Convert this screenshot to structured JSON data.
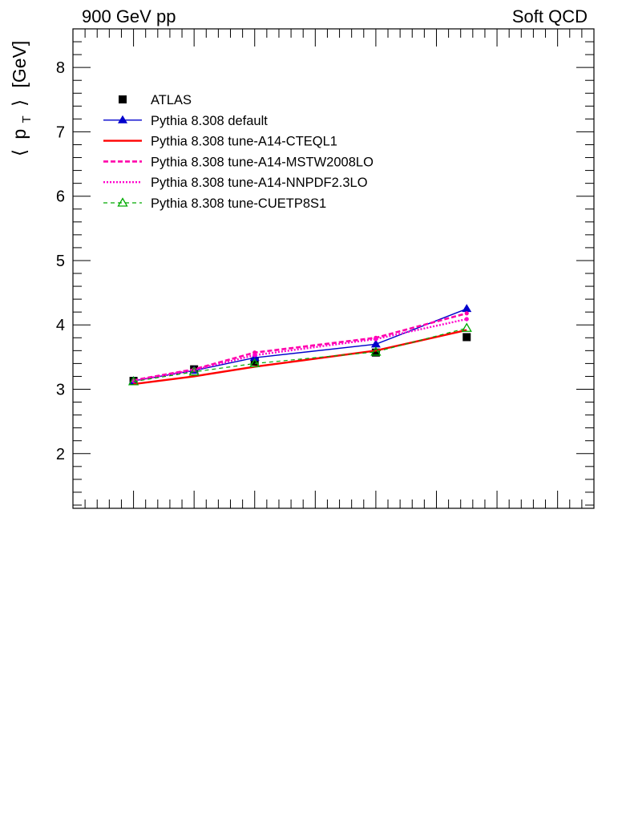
{
  "header": {
    "left_label": "900 GeV pp",
    "right_label": "Soft QCD"
  },
  "chart_data": {
    "type": "line",
    "ylabel": {
      "open": "⟨",
      "p": "p",
      "sub": "T",
      "close": "⟩",
      "unit": "[GeV]"
    },
    "xlabel": "",
    "ylim": [
      1.15,
      8.6
    ],
    "xlim": [
      0,
      8.6
    ],
    "grid": false,
    "legend_placement": "top-left",
    "yticks": [
      2,
      3,
      4,
      5,
      6,
      7,
      8
    ],
    "x": [
      1,
      2,
      3,
      5,
      6.5
    ],
    "series": [
      {
        "name": "ATLAS",
        "color": "#000000",
        "marker": "filled-square",
        "line": "none",
        "values": [
          3.13,
          3.31,
          3.43,
          3.57,
          3.81
        ]
      },
      {
        "name": "Pythia 8.308 default",
        "color": "#0000cc",
        "marker": "filled-triangle",
        "line": "solid",
        "values": [
          3.13,
          3.29,
          3.49,
          3.7,
          4.25
        ]
      },
      {
        "name": "Pythia 8.308 tune-A14-CTEQL1",
        "color": "#ff0000",
        "marker": "none",
        "line": "solid-thick",
        "values": [
          3.08,
          3.2,
          3.35,
          3.6,
          3.92
        ]
      },
      {
        "name": "Pythia 8.308 tune-A14-MSTW2008LO",
        "color": "#ff00aa",
        "marker": "small-dot",
        "line": "dashed",
        "values": [
          3.14,
          3.31,
          3.57,
          3.8,
          4.18
        ]
      },
      {
        "name": "Pythia 8.308 tune-A14-NNPDF2.3LO",
        "color": "#ff00cc",
        "marker": "small-dot",
        "line": "dotted",
        "values": [
          3.13,
          3.3,
          3.53,
          3.78,
          4.09
        ]
      },
      {
        "name": "Pythia 8.308 tune-CUETP8S1",
        "color": "#00aa00",
        "marker": "open-triangle",
        "line": "dashed-thin",
        "values": [
          3.12,
          3.27,
          3.4,
          3.58,
          3.95
        ]
      }
    ]
  }
}
